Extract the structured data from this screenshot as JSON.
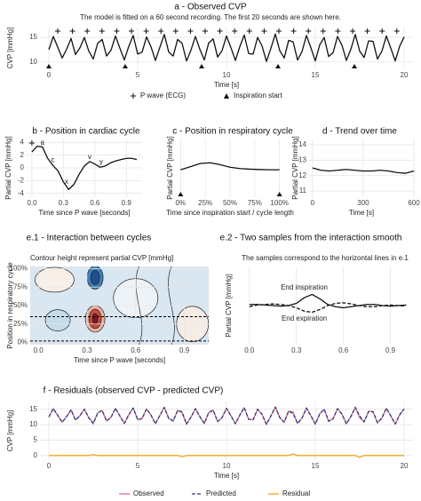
{
  "chart_data": [
    {
      "type": "line",
      "title": "a - Observed CVP",
      "subtitle": "The model is fitted on a 60 second recording. The first 20 seconds are shown here.",
      "xlabel": "Time [s]",
      "ylabel": "CVP [mmHg]",
      "xlim": [
        -0.5,
        20.5
      ],
      "ylim": [
        8.5,
        17.2
      ],
      "xticks": [
        0,
        5,
        10,
        15,
        20
      ],
      "yticks": [
        10,
        15
      ],
      "grid": true,
      "x": [
        0,
        0.25,
        0.5,
        0.75,
        1,
        1.25,
        1.5,
        1.75,
        2,
        2.25,
        2.5,
        2.75,
        3,
        3.25,
        3.5,
        3.75,
        4,
        4.25,
        4.5,
        4.75,
        5,
        5.25,
        5.5,
        5.75,
        6,
        6.25,
        6.5,
        6.75,
        7,
        7.25,
        7.5,
        7.75,
        8,
        8.25,
        8.5,
        8.75,
        9,
        9.25,
        9.5,
        9.75,
        10,
        10.25,
        10.5,
        10.75,
        11,
        11.25,
        11.5,
        11.75,
        12,
        12.25,
        12.5,
        12.75,
        13,
        13.25,
        13.5,
        13.75,
        14,
        14.25,
        14.5,
        14.75,
        15,
        15.25,
        15.5,
        15.75,
        16,
        16.25,
        16.5,
        16.75,
        17,
        17.25,
        17.5,
        17.75,
        18,
        18.25,
        18.5,
        18.75,
        19,
        19.25,
        19.5,
        19.75,
        20
      ],
      "series": [
        {
          "color": "#111111",
          "values": [
            12.5,
            15.2,
            13.0,
            10.8,
            12.6,
            14.8,
            11.5,
            12.9,
            15.0,
            12.2,
            10.6,
            13.8,
            14.6,
            11.2,
            12.4,
            15.3,
            12.8,
            10.4,
            13.2,
            15.4,
            11.6,
            12.0,
            15.1,
            13.1,
            10.3,
            13.0,
            15.6,
            12.0,
            11.2,
            14.6,
            13.8,
            10.2,
            12.4,
            15.2,
            12.6,
            10.4,
            13.9,
            14.7,
            11.0,
            12.3,
            15.3,
            12.9,
            10.3,
            13.1,
            15.5,
            11.7,
            11.6,
            15.0,
            13.3,
            10.1,
            12.8,
            15.7,
            12.3,
            10.8,
            14.4,
            14.1,
            10.4,
            12.1,
            15.4,
            12.9,
            10.2,
            13.5,
            15.0,
            11.1,
            11.9,
            15.2,
            13.4,
            10.3,
            12.6,
            15.6,
            12.2,
            10.9,
            14.3,
            14.2,
            10.6,
            12.2,
            15.3,
            12.8,
            10.2,
            13.2,
            15.1
          ]
        }
      ],
      "markers": [
        {
          "name": "P wave (ECG)",
          "symbol": "plus",
          "x": [
            0.5,
            1.33,
            2.16,
            2.99,
            3.82,
            4.65,
            5.48,
            6.31,
            7.14,
            7.97,
            8.8,
            9.63,
            10.46,
            11.29,
            12.12,
            12.95,
            13.78,
            14.61,
            15.44,
            16.27,
            17.1,
            17.93,
            18.76,
            19.59
          ]
        },
        {
          "name": "Inspiration start",
          "symbol": "triangle",
          "x": [
            0,
            4.3,
            8.6,
            12.9,
            17.2
          ]
        }
      ]
    },
    {
      "type": "line",
      "title": "b - Position in cardiac cycle",
      "xlabel": "Time since P wave [seconds]",
      "ylabel": "Partial CVP [mmHg]",
      "xlim": [
        -0.05,
        1.05
      ],
      "ylim": [
        -4.6,
        4.6
      ],
      "xticks": [
        {
          "value": 0,
          "label": "0.0"
        },
        0.3,
        0.6,
        0.9
      ],
      "yticks": [
        -4,
        -2,
        0,
        2,
        4
      ],
      "grid": true,
      "x": [
        0,
        0.05,
        0.1,
        0.15,
        0.2,
        0.25,
        0.3,
        0.35,
        0.4,
        0.45,
        0.5,
        0.55,
        0.6,
        0.65,
        0.7,
        0.75,
        0.8,
        0.85,
        0.9,
        0.95,
        1
      ],
      "series": [
        {
          "color": "#111111",
          "values": [
            2.5,
            3.4,
            3.3,
            1.5,
            0.4,
            -0.5,
            -2.2,
            -3.4,
            -2.6,
            -1.0,
            0.3,
            1.0,
            0.6,
            0.1,
            0.3,
            0.8,
            1.1,
            1.3,
            1.5,
            1.5,
            1.3
          ]
        }
      ],
      "annotations": [
        "a",
        "c",
        "x",
        "v",
        "y"
      ],
      "markers": [
        {
          "symbol": "plus",
          "x": [
            0
          ]
        }
      ]
    },
    {
      "type": "line",
      "title": "c - Position in respiratory cycle",
      "xlabel": "Time since inspiration start / cycle length",
      "ylabel": "Partial CVP [mmHg]",
      "xlim": [
        -0.03,
        1.03
      ],
      "ylim": [
        -4.6,
        4.6
      ],
      "xticks": [
        {
          "value": 0,
          "label": "0%"
        },
        {
          "value": 0.25,
          "label": "25%"
        },
        {
          "value": 0.5,
          "label": "50%"
        },
        {
          "value": 0.75,
          "label": "75%"
        },
        {
          "value": 1,
          "label": "100%"
        }
      ],
      "grid": true,
      "x": [
        0,
        0.1,
        0.2,
        0.3,
        0.4,
        0.5,
        0.6,
        0.7,
        0.8,
        0.9,
        1
      ],
      "series": [
        {
          "color": "#111111",
          "values": [
            -0.3,
            0.2,
            0.7,
            0.8,
            0.5,
            0.1,
            -0.1,
            -0.2,
            -0.25,
            -0.3,
            -0.3
          ]
        }
      ],
      "markers": [
        {
          "symbol": "triangle",
          "x": [
            0,
            1
          ]
        }
      ]
    },
    {
      "type": "line",
      "title": "d - Trend over time",
      "xlabel": "Time [s]",
      "ylabel": "Partial CVP [mmHg]",
      "xlim": [
        -20,
        600
      ],
      "ylim": [
        10.6,
        14.4
      ],
      "xticks": [
        0,
        300,
        600
      ],
      "yticks": [
        11,
        12,
        13,
        14
      ],
      "grid": true,
      "x": [
        0,
        50,
        100,
        150,
        200,
        250,
        300,
        350,
        400,
        450,
        500,
        550,
        600
      ],
      "series": [
        {
          "color": "#111111",
          "values": [
            12.5,
            12.35,
            12.3,
            12.35,
            12.4,
            12.35,
            12.3,
            12.3,
            12.35,
            12.3,
            12.2,
            12.15,
            12.3
          ]
        }
      ]
    },
    {
      "type": "contour",
      "title": "e.1 - Interaction between cycles",
      "subtitle": "Contour height represent partial CVP [mmHg]",
      "xlabel": "Time since P wave [seconds]",
      "ylabel": "Position in respiratory cycle",
      "xlim": [
        -0.05,
        1.05
      ],
      "ylim": [
        -0.03,
        1.03
      ],
      "xticks": [
        {
          "value": 0,
          "label": "0.0"
        },
        0.3,
        0.6,
        0.9
      ],
      "yticks": [
        {
          "value": 0,
          "label": "0%"
        },
        {
          "value": 0.25,
          "label": "25%"
        },
        {
          "value": 0.5,
          "label": "50%"
        },
        {
          "value": 0.75,
          "label": "75%"
        },
        {
          "value": 1,
          "label": "100%"
        }
      ],
      "grid": true,
      "hlines": [
        0.35,
        0.02
      ]
    },
    {
      "type": "line",
      "title": "e.2 - Two samples from the interaction smooth",
      "subtitle": "The samples correspond to the horizontal lines in e.1",
      "ylabel": "Partial CVP [mmHg]",
      "xlim": [
        -0.05,
        1.05
      ],
      "ylim": [
        -3.5,
        3.5
      ],
      "xticks": [
        {
          "value": 0,
          "label": "0.0"
        },
        0.3,
        0.6,
        0.9
      ],
      "grid": true,
      "x": [
        0,
        0.05,
        0.1,
        0.15,
        0.2,
        0.25,
        0.3,
        0.35,
        0.4,
        0.45,
        0.5,
        0.55,
        0.6,
        0.65,
        0.7,
        0.75,
        0.8,
        0.85,
        0.9,
        0.95,
        1
      ],
      "series": [
        {
          "name": "End inspiration",
          "color": "#111111",
          "values": [
            0.1,
            0.1,
            0.05,
            0,
            -0.05,
            0,
            0.2,
            0.7,
            1.0,
            0.6,
            0.1,
            -0.1,
            -0.2,
            -0.1,
            0,
            0.1,
            0.1,
            0,
            -0.05,
            0,
            0.05
          ]
        },
        {
          "name": "End expiration",
          "color": "#111111",
          "dash": true,
          "values": [
            -0.1,
            0.05,
            0.1,
            0.15,
            0.1,
            0,
            -0.2,
            -0.5,
            -0.6,
            -0.35,
            0,
            0.2,
            0.25,
            0.15,
            0,
            -0.1,
            -0.1,
            0,
            0.05,
            0,
            -0.05
          ]
        }
      ]
    },
    {
      "type": "line",
      "title": "f - Residuals (observed CVP - predicted CVP)",
      "xlabel": "Time [s]",
      "ylabel": "CVP [mmHg]",
      "xlim": [
        -0.5,
        20.5
      ],
      "ylim": [
        -1.5,
        17.5
      ],
      "xticks": [
        0,
        5,
        10,
        15,
        20
      ],
      "yticks": [
        0,
        5,
        10,
        15
      ],
      "grid": true,
      "x": [
        0,
        0.25,
        0.5,
        0.75,
        1,
        1.25,
        1.5,
        1.75,
        2,
        2.25,
        2.5,
        2.75,
        3,
        3.25,
        3.5,
        3.75,
        4,
        4.25,
        4.5,
        4.75,
        5,
        5.25,
        5.5,
        5.75,
        6,
        6.25,
        6.5,
        6.75,
        7,
        7.25,
        7.5,
        7.75,
        8,
        8.25,
        8.5,
        8.75,
        9,
        9.25,
        9.5,
        9.75,
        10,
        10.25,
        10.5,
        10.75,
        11,
        11.25,
        11.5,
        11.75,
        12,
        12.25,
        12.5,
        12.75,
        13,
        13.25,
        13.5,
        13.75,
        14,
        14.25,
        14.5,
        14.75,
        15,
        15.25,
        15.5,
        15.75,
        16,
        16.25,
        16.5,
        16.75,
        17,
        17.25,
        17.5,
        17.75,
        18,
        18.25,
        18.5,
        18.75,
        19,
        19.25,
        19.5,
        19.75,
        20
      ],
      "series": [
        {
          "name": "Observed",
          "color": "#e3708c",
          "values": [
            12.5,
            15.2,
            13.0,
            10.8,
            12.6,
            14.8,
            11.5,
            12.9,
            15.0,
            12.2,
            10.6,
            13.8,
            14.6,
            11.2,
            12.4,
            15.3,
            12.8,
            10.4,
            13.2,
            15.4,
            11.6,
            12.0,
            15.1,
            13.1,
            10.3,
            13.0,
            15.6,
            12.0,
            11.2,
            14.6,
            13.8,
            10.2,
            12.4,
            15.2,
            12.6,
            10.4,
            13.9,
            14.7,
            11.0,
            12.3,
            15.3,
            12.9,
            10.3,
            13.1,
            15.5,
            11.7,
            11.6,
            15.0,
            13.3,
            10.1,
            12.8,
            15.7,
            12.3,
            10.8,
            14.4,
            14.1,
            10.4,
            12.1,
            15.4,
            12.9,
            10.2,
            13.5,
            15.0,
            11.1,
            11.9,
            15.2,
            13.4,
            10.3,
            12.6,
            15.6,
            12.2,
            10.9,
            14.3,
            14.2,
            10.6,
            12.2,
            15.3,
            12.8,
            10.2,
            13.2,
            15.1
          ]
        },
        {
          "name": "Predicted",
          "color": "#2b3a80",
          "dash": true,
          "values": [
            12.5,
            15.2,
            13.0,
            10.8,
            12.6,
            14.8,
            11.5,
            12.9,
            15.0,
            12.2,
            10.3,
            13.8,
            14.6,
            11.2,
            12.4,
            15.3,
            12.8,
            10.4,
            13.2,
            15.4,
            11.6,
            12.0,
            15.1,
            13.1,
            10.3,
            13.0,
            15.6,
            12.0,
            11.2,
            14.6,
            14.2,
            10.2,
            12.4,
            15.2,
            12.6,
            10.4,
            13.9,
            14.7,
            11.0,
            12.3,
            15.3,
            12.9,
            10.3,
            13.1,
            15.5,
            11.7,
            11.6,
            15.0,
            13.3,
            10.1,
            12.8,
            15.7,
            12.3,
            10.8,
            14.4,
            13.6,
            10.4,
            12.1,
            15.4,
            12.9,
            10.2,
            13.5,
            15.0,
            11.1,
            11.9,
            15.2,
            13.4,
            10.3,
            12.6,
            15.6,
            12.8,
            10.9,
            14.3,
            14.2,
            10.6,
            12.2,
            15.3,
            12.8,
            10.2,
            13.2,
            15.1
          ]
        },
        {
          "name": "Residual",
          "color": "#f0a51b",
          "values": [
            0,
            0,
            0,
            0,
            0,
            0,
            0,
            0,
            0,
            0,
            0.3,
            0,
            0,
            0,
            0,
            0,
            0,
            0,
            0,
            0,
            0,
            0,
            0,
            0,
            0,
            0,
            0,
            0,
            0,
            0,
            -0.4,
            0,
            0,
            0,
            0,
            0,
            0,
            0,
            0,
            0,
            0,
            0,
            0,
            0,
            0,
            0,
            0,
            0,
            0,
            0,
            0,
            0,
            0,
            0,
            0,
            0.5,
            0,
            0,
            0,
            0,
            0,
            0,
            0,
            0,
            0,
            0,
            0,
            0,
            0,
            0,
            -0.6,
            0,
            0,
            0,
            0,
            0,
            0,
            0,
            0,
            0,
            0
          ]
        }
      ]
    }
  ]
}
